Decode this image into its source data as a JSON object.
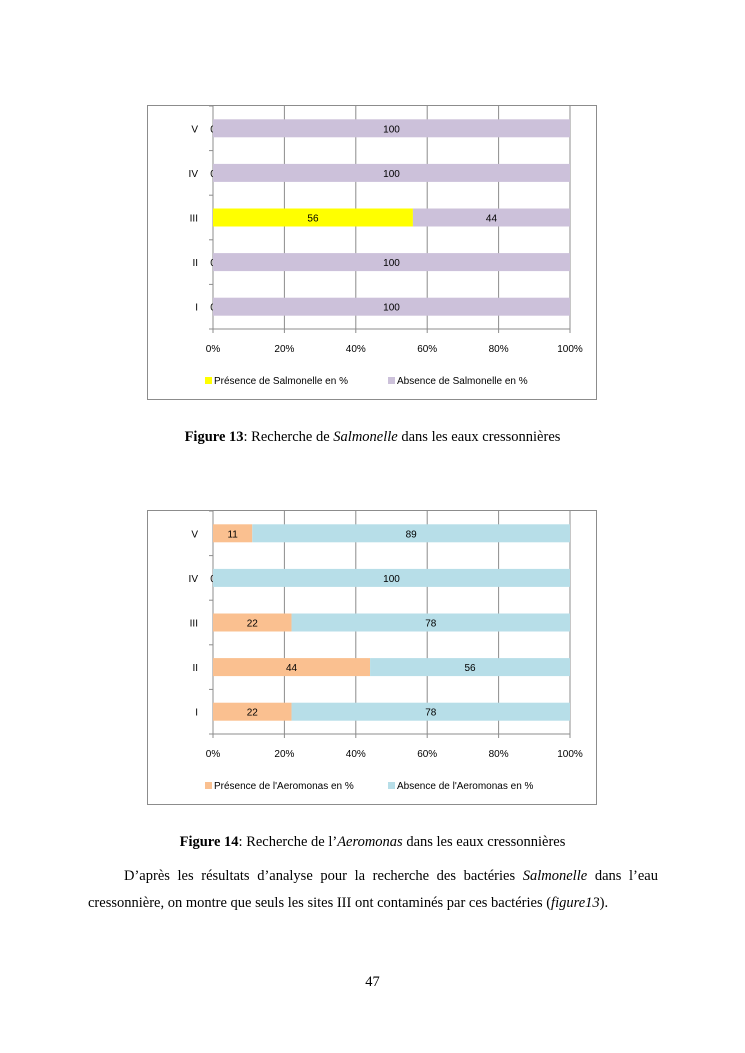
{
  "chart_data": [
    {
      "type": "bar",
      "orientation": "horizontal",
      "stacked": "percent",
      "categories": [
        "V",
        "IV",
        "III",
        "II",
        "I"
      ],
      "series": [
        {
          "name": "Présence de Salmonelle en %",
          "values": [
            0,
            0,
            56,
            0,
            0
          ],
          "color": "#FFFF00"
        },
        {
          "name": "Absence de Salmonelle en %",
          "values": [
            100,
            100,
            44,
            100,
            100
          ],
          "color": "#CCC1DA"
        }
      ],
      "xticks": [
        "0%",
        "20%",
        "40%",
        "60%",
        "80%",
        "100%"
      ],
      "xlim": [
        0,
        100
      ],
      "grid": true,
      "legend": "bottom"
    },
    {
      "type": "bar",
      "orientation": "horizontal",
      "stacked": "percent",
      "categories": [
        "V",
        "IV",
        "III",
        "II",
        "I"
      ],
      "series": [
        {
          "name": "Présence de l'Aeromonas en %",
          "values": [
            11,
            0,
            22,
            44,
            22
          ],
          "color": "#FAC090"
        },
        {
          "name": "Absence de l'Aeromonas en %",
          "values": [
            89,
            100,
            78,
            56,
            78
          ],
          "color": "#B7DEE8"
        }
      ],
      "xticks": [
        "0%",
        "20%",
        "40%",
        "60%",
        "80%",
        "100%"
      ],
      "xlim": [
        0,
        100
      ],
      "grid": true,
      "legend": "bottom"
    }
  ],
  "captions": [
    {
      "label": "Figure 13",
      "pre": ": Recherche de ",
      "italic": "Salmonelle",
      "post": " dans les eaux cressonnières"
    },
    {
      "label": "Figure 14",
      "pre": ": Recherche de l’",
      "italic": "Aeromonas",
      "post": " dans les eaux cressonnières"
    }
  ],
  "paragraph": {
    "t1": "D’après les résultats d’analyse pour la recherche des bactéries ",
    "i1": "Salmonelle",
    "t2": " dans l’eau cressonnière, on montre que seuls les sites III ont contaminés par ces bactéries (",
    "i2": "figure13",
    "t3": ")."
  },
  "page_number": "47"
}
